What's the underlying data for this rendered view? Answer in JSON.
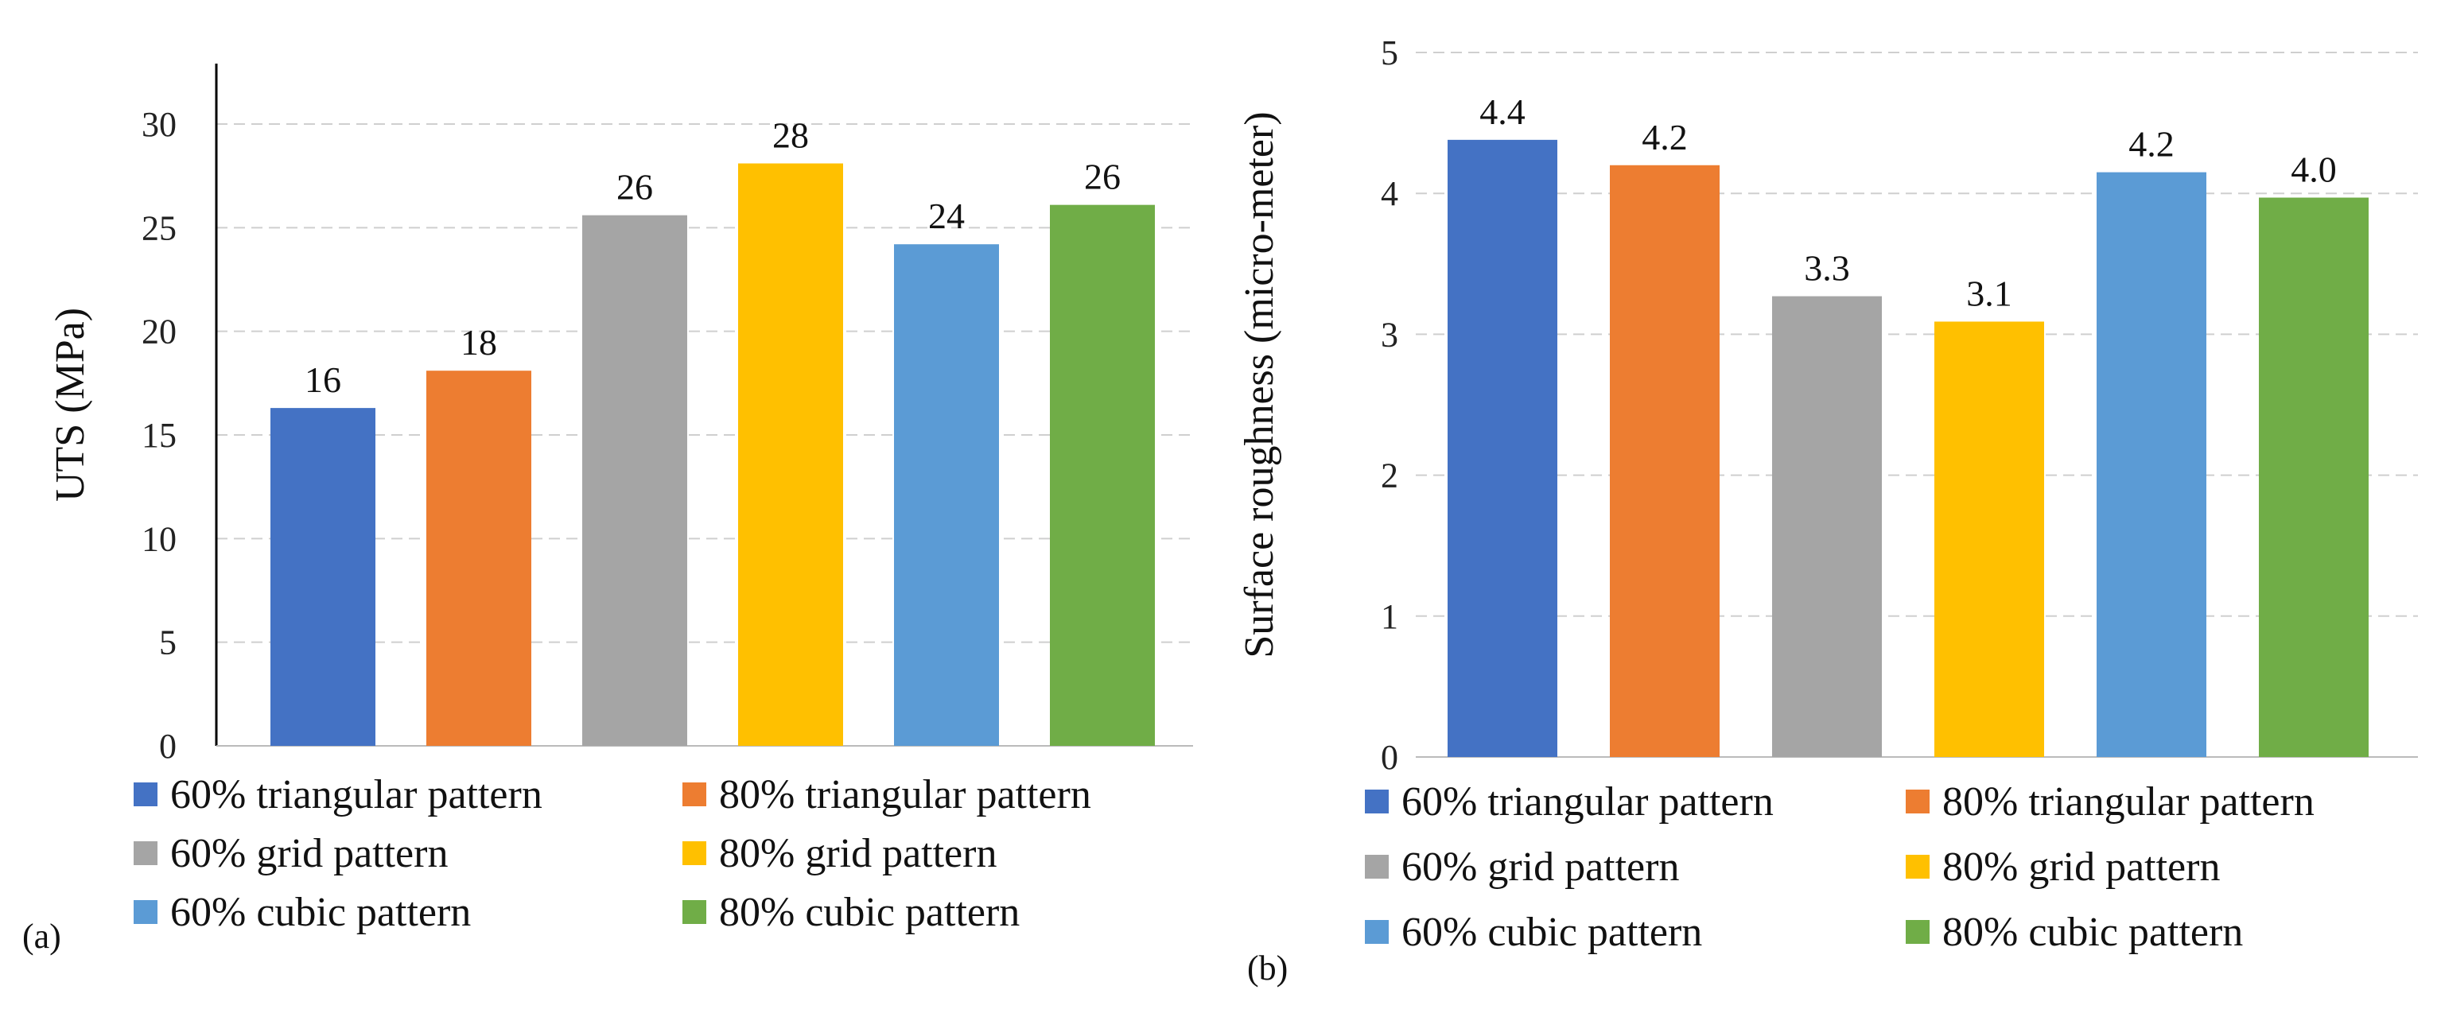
{
  "chart_data": [
    {
      "type": "bar",
      "panel_label": "(a)",
      "ylabel": "UTS (MPa)",
      "xlabel": "",
      "ylim": [
        0,
        33
      ],
      "yticks": [
        "0",
        "5",
        "10",
        "15",
        "20",
        "25",
        "30"
      ],
      "grid": true,
      "categories": [
        "60% triangular pattern",
        "80% triangular pattern",
        "60% grid pattern",
        "80% grid pattern",
        "60% cubic pattern",
        "80% cubic pattern"
      ],
      "values": [
        16.3,
        18.1,
        25.6,
        28.1,
        24.2,
        26.1
      ],
      "data_labels": [
        "16",
        "18",
        "26",
        "28",
        "24",
        "26"
      ],
      "colors": [
        "#4472C4",
        "#ED7D31",
        "#A5A5A5",
        "#FFC000",
        "#5B9BD5",
        "#70AD47"
      ],
      "legend_position": "bottom"
    },
    {
      "type": "bar",
      "panel_label": "(b)",
      "ylabel": "Surface roughness (micro-meter)",
      "xlabel": "",
      "ylim": [
        0,
        5
      ],
      "yticks": [
        "0",
        "1",
        "2",
        "3",
        "4",
        "5"
      ],
      "grid": true,
      "categories": [
        "60% triangular pattern",
        "80% triangular pattern",
        "60% grid pattern",
        "80% grid pattern",
        "60% cubic pattern",
        "80% cubic pattern"
      ],
      "values": [
        4.38,
        4.2,
        3.27,
        3.09,
        4.15,
        3.97
      ],
      "data_labels": [
        "4.4",
        "4.2",
        "3.3",
        "3.1",
        "4.2",
        "4.0"
      ],
      "colors": [
        "#4472C4",
        "#ED7D31",
        "#A5A5A5",
        "#FFC000",
        "#5B9BD5",
        "#70AD47"
      ],
      "legend_position": "bottom"
    }
  ]
}
